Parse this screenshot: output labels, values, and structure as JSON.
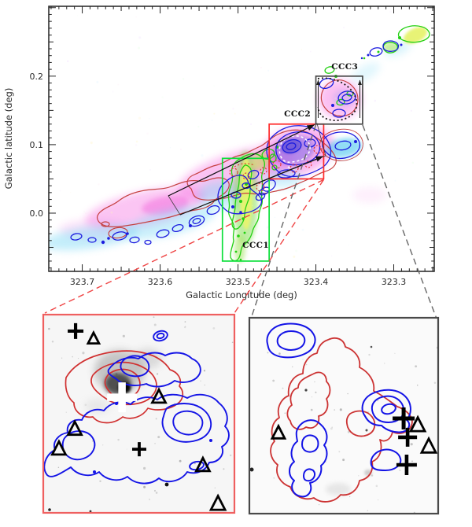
{
  "chart_data": {
    "type": "heatmap",
    "title": "",
    "top_panel": {
      "xlabel": "Galactic Longitude (deg)",
      "ylabel": "Galactic latitude (deg)",
      "x_ticks": [
        "323.7",
        "323.6",
        "323.5",
        "323.4",
        "323.3"
      ],
      "x_tick_values": [
        323.7,
        323.6,
        323.5,
        323.4,
        323.3
      ],
      "y_ticks": [
        "0.2",
        "0.1",
        "0.0"
      ],
      "y_tick_values": [
        0.2,
        0.1,
        0.0
      ],
      "x_range": [
        323.743,
        323.248
      ],
      "y_range": [
        0.302,
        -0.085
      ],
      "x_axis_reversed": true,
      "grid": false,
      "regions": [
        {
          "id": "ccc1",
          "label": "CCC1",
          "box_color": "#0ce03a",
          "lon": [
            323.46,
            323.52
          ],
          "lat": [
            -0.07,
            0.08
          ]
        },
        {
          "id": "ccc2",
          "label": "CCC2",
          "box_color": "#ff2a2a",
          "lon": [
            323.39,
            323.46
          ],
          "lat": [
            0.05,
            0.13
          ]
        },
        {
          "id": "ccc3",
          "label": "CCC3",
          "box_color": "#484848",
          "lon": [
            323.34,
            323.4
          ],
          "lat": [
            0.13,
            0.2
          ]
        }
      ],
      "overlay_colors": {
        "magenta_emission": "#f568e0",
        "cyan_emission": "#7cd9f5",
        "green_emission": "#7ddc49",
        "yellow_emission": "#ecf56a",
        "blue_contour": "#1c1cdf",
        "red_contour": "#c54040",
        "green_contour": "#22d011",
        "white_dashed_contour": "#ffffff",
        "red_dashed_circles": "#e0352b",
        "dotted_black_contour": "#1a1a1a"
      }
    },
    "connectors": {
      "left_pair_color": "#ef4444",
      "right_pair_color": "#666666",
      "style": "dashed"
    },
    "bottom_left_panel": {
      "border_color": "#ef6060",
      "contour_colors": {
        "red": "#d03030",
        "blue": "#1414e6"
      },
      "markers": [
        {
          "type": "plus",
          "color": "#000000",
          "fx": 0.169,
          "fy": 0.083,
          "arm": 10,
          "sw": 4.2
        },
        {
          "type": "triangle",
          "color": "#000000",
          "fx": 0.263,
          "fy": 0.123,
          "size": 7
        },
        {
          "type": "plus_white",
          "color": "#ffffff",
          "fx": 0.412,
          "fy": 0.417,
          "arm": 19,
          "sw": 9.5
        },
        {
          "type": "triangle",
          "color": "#000000",
          "fx": 0.605,
          "fy": 0.417,
          "size": 8.5
        },
        {
          "type": "triangle",
          "color": "#000000",
          "fx": 0.165,
          "fy": 0.579,
          "size": 8.5
        },
        {
          "type": "triangle",
          "color": "#000000",
          "fx": 0.082,
          "fy": 0.679,
          "size": 8.5
        },
        {
          "type": "plus",
          "color": "#000000",
          "fx": 0.502,
          "fy": 0.679,
          "arm": 9,
          "sw": 3.8
        },
        {
          "type": "triangle",
          "color": "#000000",
          "fx": 0.835,
          "fy": 0.762,
          "size": 8.5
        },
        {
          "type": "triangle",
          "color": "#000000",
          "fx": 0.914,
          "fy": 0.956,
          "size": 9
        }
      ]
    },
    "bottom_right_panel": {
      "border_color": "#4a4a4a",
      "contour_colors": {
        "red": "#cc3333",
        "blue": "#1414e6"
      },
      "markers": [
        {
          "type": "triangle",
          "color": "#000000",
          "fx": 0.154,
          "fy": 0.59,
          "size": 8
        },
        {
          "type": "plus",
          "color": "#000000",
          "fx": 0.817,
          "fy": 0.514,
          "arm": 14,
          "sw": 5
        },
        {
          "type": "triangle",
          "color": "#000000",
          "fx": 0.892,
          "fy": 0.55,
          "size": 9
        },
        {
          "type": "plus",
          "color": "#000000",
          "fx": 0.838,
          "fy": 0.61,
          "arm": 12,
          "sw": 4.6
        },
        {
          "type": "triangle",
          "color": "#000000",
          "fx": 0.95,
          "fy": 0.659,
          "size": 9
        },
        {
          "type": "plus",
          "color": "#000000",
          "fx": 0.833,
          "fy": 0.751,
          "arm": 13,
          "sw": 4.6
        }
      ]
    }
  }
}
